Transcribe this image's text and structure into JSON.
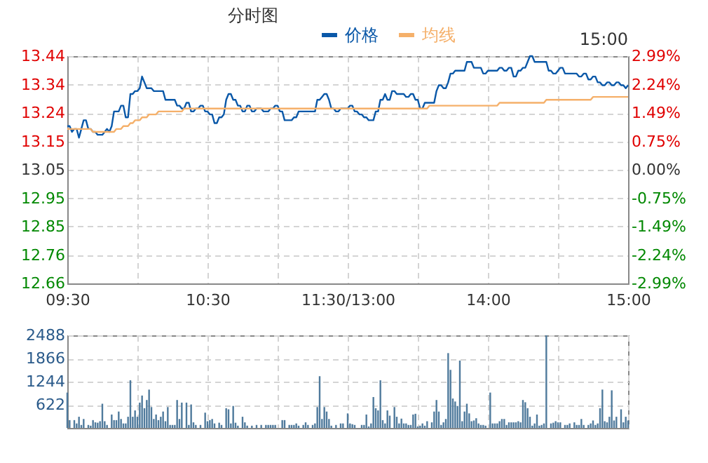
{
  "chart_data": [
    {
      "type": "line",
      "title": "分时图",
      "annotations": [
        "15:00"
      ],
      "legend": "top",
      "grid": true,
      "categories": [
        "09:30",
        null,
        null,
        null,
        null,
        null,
        null,
        null,
        null,
        null,
        null,
        null,
        null,
        null,
        null,
        null,
        null,
        null,
        null,
        null,
        null,
        null,
        null,
        null,
        null,
        null,
        null,
        null,
        null,
        null,
        null,
        null,
        null,
        null,
        null,
        null,
        null,
        null,
        null,
        null,
        null,
        null,
        null,
        null,
        null,
        null,
        null,
        null,
        null,
        null,
        null,
        null,
        null,
        null,
        null,
        null,
        null,
        null,
        null,
        null,
        "10:30",
        null,
        null,
        null,
        null,
        null,
        null,
        null,
        null,
        null,
        null,
        null,
        null,
        null,
        null,
        null,
        null,
        null,
        null,
        null,
        null,
        null,
        null,
        null,
        null,
        null,
        null,
        null,
        null,
        null,
        null,
        null,
        null,
        null,
        null,
        null,
        null,
        null,
        null,
        null,
        null,
        null,
        null,
        null,
        null,
        null,
        null,
        null,
        null,
        null,
        null,
        null,
        null,
        null,
        null,
        null,
        null,
        null,
        null,
        null,
        "11:30/13:00",
        null,
        null,
        null,
        null,
        null,
        null,
        null,
        null,
        null,
        null,
        null,
        null,
        null,
        null,
        null,
        null,
        null,
        null,
        null,
        null,
        null,
        null,
        null,
        null,
        null,
        null,
        null,
        null,
        null,
        null,
        null,
        null,
        null,
        null,
        null,
        null,
        null,
        null,
        null,
        null,
        null,
        null,
        null,
        null,
        null,
        null,
        null,
        null,
        null,
        null,
        null,
        null,
        null,
        null,
        null,
        null,
        null,
        null,
        null,
        "14:00",
        null,
        null,
        null,
        null,
        null,
        null,
        null,
        null,
        null,
        null,
        null,
        null,
        null,
        null,
        null,
        null,
        null,
        null,
        null,
        null,
        null,
        null,
        null,
        null,
        null,
        null,
        null,
        null,
        null,
        null,
        null,
        null,
        null,
        null,
        null,
        null,
        null,
        null,
        null,
        null,
        null,
        null,
        null,
        null,
        null,
        null,
        null,
        null,
        null,
        null,
        null,
        null,
        null,
        null,
        null,
        null,
        null,
        null,
        null,
        "15:00"
      ],
      "ylim": [
        12.66,
        13.44
      ],
      "yticks": [
        {
          "value": 12.66,
          "label": "12.66"
        },
        {
          "value": 12.7575,
          "label": "12.76"
        },
        {
          "value": 12.855,
          "label": "12.85"
        },
        {
          "value": 12.9525,
          "label": "12.95"
        },
        {
          "value": 13.05,
          "label": "13.05"
        },
        {
          "value": 13.1475,
          "label": "13.15"
        },
        {
          "value": 13.245,
          "label": "13.24"
        },
        {
          "value": 13.3425,
          "label": "13.34"
        },
        {
          "value": 13.44,
          "label": "13.44"
        }
      ],
      "y2lim": [
        -2.99,
        2.99
      ],
      "y2ticks": [
        {
          "value": -2.99,
          "label": "-2.99%"
        },
        {
          "value": -2.2425,
          "label": "-2.24%"
        },
        {
          "value": -1.495,
          "label": "-1.49%"
        },
        {
          "value": -0.7475,
          "label": "-0.75%"
        },
        {
          "value": 0,
          "label": "0.00%"
        },
        {
          "value": 0.7475,
          "label": "0.75%"
        },
        {
          "value": 1.495,
          "label": "1.49%"
        },
        {
          "value": 2.2425,
          "label": "2.24%"
        },
        {
          "value": 2.99,
          "label": "2.99%"
        }
      ],
      "series": [
        {
          "name": "价格",
          "color": "#0a58a8",
          "values": [
            13.2,
            13.2,
            13.18,
            13.19,
            13.19,
            13.16,
            13.19,
            13.22,
            13.22,
            13.19,
            13.19,
            13.18,
            13.18,
            13.17,
            13.17,
            13.17,
            13.18,
            13.19,
            13.18,
            13.2,
            13.25,
            13.25,
            13.25,
            13.27,
            13.27,
            13.23,
            13.23,
            13.31,
            13.31,
            13.32,
            13.32,
            13.33,
            13.37,
            13.35,
            13.33,
            13.33,
            13.33,
            13.32,
            13.32,
            13.32,
            13.32,
            13.32,
            13.29,
            13.29,
            13.29,
            13.29,
            13.29,
            13.27,
            13.27,
            13.26,
            13.26,
            13.28,
            13.28,
            13.25,
            13.25,
            13.26,
            13.26,
            13.27,
            13.27,
            13.25,
            13.25,
            13.24,
            13.24,
            13.21,
            13.21,
            13.23,
            13.23,
            13.24,
            13.29,
            13.31,
            13.31,
            13.29,
            13.29,
            13.27,
            13.27,
            13.25,
            13.25,
            13.27,
            13.27,
            13.25,
            13.25,
            13.26,
            13.26,
            13.26,
            13.25,
            13.25,
            13.25,
            13.26,
            13.26,
            13.27,
            13.27,
            13.25,
            13.25,
            13.22,
            13.22,
            13.22,
            13.22,
            13.23,
            13.23,
            13.25,
            13.25,
            13.25,
            13.25,
            13.25,
            13.25,
            13.25,
            13.25,
            13.29,
            13.29,
            13.3,
            13.31,
            13.31,
            13.29,
            13.26,
            13.26,
            13.25,
            13.25,
            13.26,
            13.26,
            13.26,
            13.26,
            13.27,
            13.27,
            13.25,
            13.25,
            13.24,
            13.24,
            13.23,
            13.23,
            13.22,
            13.22,
            13.22,
            13.25,
            13.25,
            13.29,
            13.29,
            13.31,
            13.29,
            13.29,
            13.32,
            13.32,
            13.31,
            13.31,
            13.31,
            13.31,
            13.3,
            13.3,
            13.31,
            13.31,
            13.29,
            13.29,
            13.26,
            13.26,
            13.28,
            13.28,
            13.28,
            13.28,
            13.28,
            13.32,
            13.34,
            13.34,
            13.33,
            13.33,
            13.35,
            13.38,
            13.38,
            13.39,
            13.39,
            13.39,
            13.39,
            13.39,
            13.42,
            13.42,
            13.42,
            13.4,
            13.4,
            13.4,
            13.4,
            13.38,
            13.38,
            13.39,
            13.39,
            13.39,
            13.39,
            13.39,
            13.4,
            13.4,
            13.39,
            13.39,
            13.4,
            13.4,
            13.37,
            13.37,
            13.39,
            13.39,
            13.4,
            13.4,
            13.42,
            13.44,
            13.44,
            13.42,
            13.42,
            13.42,
            13.42,
            13.42,
            13.42,
            13.39,
            13.39,
            13.38,
            13.38,
            13.39,
            13.4,
            13.4,
            13.38,
            13.38,
            13.38,
            13.38,
            13.38,
            13.38,
            13.37,
            13.37,
            13.38,
            13.38,
            13.36,
            13.36,
            13.37,
            13.37,
            13.35,
            13.35,
            13.34,
            13.34,
            13.35,
            13.35,
            13.34,
            13.34,
            13.35,
            13.35,
            13.34,
            13.34,
            13.33,
            13.34
          ]
        },
        {
          "name": "均线",
          "color": "#f5b06a",
          "values": [
            13.19,
            13.19,
            13.19,
            13.19,
            13.19,
            13.19,
            13.19,
            13.19,
            13.19,
            13.19,
            13.19,
            13.18,
            13.18,
            13.18,
            13.18,
            13.18,
            13.18,
            13.18,
            13.18,
            13.18,
            13.18,
            13.19,
            13.19,
            13.19,
            13.2,
            13.2,
            13.2,
            13.21,
            13.21,
            13.22,
            13.22,
            13.22,
            13.23,
            13.23,
            13.23,
            13.24,
            13.24,
            13.24,
            13.24,
            13.25,
            13.25,
            13.25,
            13.25,
            13.25,
            13.25,
            13.25,
            13.25,
            13.25,
            13.25,
            13.25,
            13.26,
            13.26,
            13.26,
            13.26,
            13.26,
            13.26,
            13.26,
            13.26,
            13.26,
            13.26,
            13.26,
            13.26,
            13.26,
            13.26,
            13.26,
            13.26,
            13.26,
            13.26,
            13.26,
            13.26,
            13.26,
            13.26,
            13.26,
            13.26,
            13.26,
            13.26,
            13.26,
            13.26,
            13.26,
            13.26,
            13.26,
            13.26,
            13.26,
            13.26,
            13.26,
            13.26,
            13.26,
            13.26,
            13.26,
            13.26,
            13.26,
            13.26,
            13.26,
            13.26,
            13.26,
            13.26,
            13.26,
            13.26,
            13.26,
            13.26,
            13.26,
            13.26,
            13.26,
            13.26,
            13.26,
            13.26,
            13.26,
            13.26,
            13.26,
            13.26,
            13.26,
            13.26,
            13.26,
            13.26,
            13.26,
            13.26,
            13.26,
            13.26,
            13.26,
            13.26,
            13.26,
            13.26,
            13.26,
            13.26,
            13.26,
            13.26,
            13.26,
            13.26,
            13.26,
            13.26,
            13.26,
            13.26,
            13.26,
            13.26,
            13.26,
            13.26,
            13.26,
            13.26,
            13.26,
            13.26,
            13.26,
            13.26,
            13.26,
            13.26,
            13.26,
            13.26,
            13.26,
            13.26,
            13.26,
            13.26,
            13.26,
            13.26,
            13.26,
            13.26,
            13.26,
            13.27,
            13.27,
            13.27,
            13.27,
            13.27,
            13.27,
            13.27,
            13.27,
            13.27,
            13.27,
            13.27,
            13.27,
            13.27,
            13.27,
            13.27,
            13.27,
            13.27,
            13.27,
            13.27,
            13.27,
            13.27,
            13.27,
            13.27,
            13.27,
            13.27,
            13.27,
            13.27,
            13.27,
            13.27,
            13.27,
            13.28,
            13.28,
            13.28,
            13.28,
            13.28,
            13.28,
            13.28,
            13.28,
            13.28,
            13.28,
            13.28,
            13.28,
            13.28,
            13.28,
            13.28,
            13.28,
            13.28,
            13.28,
            13.28,
            13.28,
            13.29,
            13.29,
            13.29,
            13.29,
            13.29,
            13.29,
            13.29,
            13.29,
            13.29,
            13.29,
            13.29,
            13.29,
            13.29,
            13.29,
            13.29,
            13.29,
            13.29,
            13.29,
            13.29,
            13.29,
            13.3,
            13.3,
            13.3,
            13.3,
            13.3,
            13.3,
            13.3,
            13.3,
            13.3,
            13.3,
            13.3,
            13.3,
            13.3,
            13.3,
            13.3,
            13.3
          ]
        }
      ]
    },
    {
      "type": "bar",
      "color": "#4f7a9c",
      "grid": true,
      "tick_labels": "y",
      "categories": [
        null,
        null,
        null,
        null,
        null,
        null,
        null,
        null,
        null,
        null,
        null,
        null,
        null,
        null,
        null,
        null,
        null,
        null,
        null,
        null,
        null,
        null,
        null,
        null,
        null,
        null,
        null,
        null,
        null,
        null,
        null,
        null,
        null,
        null,
        null,
        null,
        null,
        null,
        null,
        null,
        null,
        null,
        null,
        null,
        null,
        null,
        null,
        null,
        null,
        null,
        null,
        null,
        null,
        null,
        null,
        null,
        null,
        null,
        null,
        null,
        null,
        null,
        null,
        null,
        null,
        null,
        null,
        null,
        null,
        null,
        null,
        null,
        null,
        null,
        null,
        null,
        null,
        null,
        null,
        null,
        null,
        null,
        null,
        null,
        null,
        null,
        null,
        null,
        null,
        null,
        null,
        null,
        null,
        null,
        null,
        null,
        null,
        null,
        null,
        null,
        null,
        null,
        null,
        null,
        null,
        null,
        null,
        null,
        null,
        null,
        null,
        null,
        null,
        null,
        null,
        null,
        null,
        null,
        null,
        null,
        null,
        null,
        null,
        null,
        null,
        null,
        null,
        null,
        null,
        null,
        null,
        null,
        null,
        null,
        null,
        null,
        null,
        null,
        null,
        null,
        null,
        null,
        null,
        null,
        null,
        null,
        null,
        null,
        null,
        null,
        null,
        null,
        null,
        null,
        null,
        null,
        null,
        null,
        null,
        null,
        null,
        null,
        null,
        null,
        null,
        null,
        null,
        null,
        null,
        null,
        null,
        null,
        null,
        null,
        null,
        null,
        null,
        null,
        null,
        null,
        null,
        null,
        null,
        null,
        null,
        null,
        null,
        null,
        null,
        null,
        null,
        null,
        null,
        null,
        null,
        null,
        null,
        null,
        null,
        null,
        null,
        null,
        null,
        null,
        null,
        null,
        null,
        null,
        null,
        null,
        null,
        null,
        null,
        null,
        null,
        null,
        null,
        null,
        null,
        null,
        null,
        null,
        null,
        null,
        null,
        null,
        null,
        null,
        null,
        null,
        null,
        null,
        null,
        null,
        null,
        null,
        null,
        null,
        null,
        null,
        null
      ],
      "ylim": [
        0,
        2488
      ],
      "yticks": [
        {
          "value": 622,
          "label": "622"
        },
        {
          "value": 1244,
          "label": "1244"
        },
        {
          "value": 1866,
          "label": "1866"
        },
        {
          "value": 2488,
          "label": "2488"
        }
      ],
      "values": [
        950,
        210,
        null,
        210,
        120,
        300,
        80,
        240,
        null,
        80,
        60,
        210,
        150,
        140,
        180,
        650,
        180,
        80,
        null,
        360,
        210,
        210,
        440,
        240,
        120,
        120,
        300,
        1280,
        300,
        470,
        300,
        680,
        870,
        530,
        750,
        1030,
        560,
        240,
        360,
        210,
        300,
        440,
        180,
        560,
        80,
        80,
        80,
        750,
        240,
        680,
        null,
        680,
        80,
        630,
        150,
        80,
        null,
        80,
        null,
        410,
        180,
        210,
        240,
        120,
        null,
        140,
        80,
        null,
        530,
        500,
        120,
        590,
        140,
        60,
        null,
        300,
        150,
        60,
        null,
        60,
        null,
        80,
        null,
        80,
        null,
        80,
        80,
        80,
        80,
        80,
        null,
        null,
        210,
        210,
        null,
        80,
        80,
        80,
        120,
        60,
        null,
        80,
        150,
        80,
        null,
        80,
        120,
        560,
        1390,
        240,
        560,
        440,
        240,
        60,
        null,
        80,
        null,
        120,
        120,
        null,
        390,
        120,
        100,
        80,
        null,
        null,
        80,
        80,
        360,
        40,
        120,
        830,
        530,
        470,
        1280,
        210,
        120,
        470,
        330,
        null,
        560,
        300,
        120,
        250,
        120,
        120,
        80,
        80,
        360,
        380,
        40,
        60,
        120,
        60,
        180,
        null,
        150,
        440,
        750,
        440,
        80,
        150,
        240,
        2010,
        1560,
        790,
        710,
        590,
        1810,
        180,
        440,
        650,
        390,
        180,
        200,
        260,
        120,
        80,
        80,
        60,
        null,
        950,
        120,
        120,
        120,
        180,
        240,
        240,
        80,
        150,
        150,
        150,
        150,
        180,
        150,
        750,
        690,
        530,
        300,
        60,
        120,
        360,
        60,
        80,
        120,
        2488,
        null,
        120,
        140,
        180,
        150,
        150,
        null,
        80,
        80,
        120,
        null,
        150,
        80,
        80,
        240,
        80,
        null,
        80,
        120,
        200,
        80,
        120,
        530,
        1030,
        180,
        150,
        300,
        1010,
        200,
        300,
        null,
        500,
        150,
        300,
        200
      ]
    }
  ]
}
